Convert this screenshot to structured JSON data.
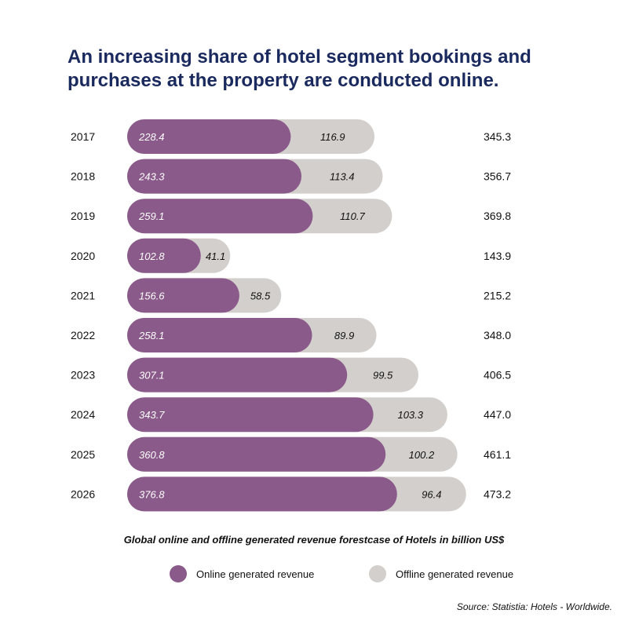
{
  "chart_data": {
    "type": "bar",
    "orientation": "horizontal",
    "stacked": true,
    "title": "An increasing share of hotel segment bookings and purchases at the property are conducted online.",
    "caption": "Global online and offline generated revenue forestcase of Hotels in billion US$",
    "source": "Source: Statistia: Hotels - Worldwide.",
    "categories": [
      "2017",
      "2018",
      "2019",
      "2020",
      "2021",
      "2022",
      "2023",
      "2024",
      "2025",
      "2026"
    ],
    "series": [
      {
        "name": "Online generated revenue",
        "color": "#8a5a8a",
        "values": [
          "228.4",
          "243.3",
          "259.1",
          "102.8",
          "156.6",
          "258.1",
          "307.1",
          "343.7",
          "360.8",
          "376.8"
        ]
      },
      {
        "name": "Offline generated revenue",
        "color": "#d3cfcc",
        "values": [
          "116.9",
          "113.4",
          "110.7",
          "41.1",
          "58.5",
          "89.9",
          "99.5",
          "103.3",
          "100.2",
          "96.4"
        ]
      }
    ],
    "totals": [
      "345.3",
      "356.7",
      "369.8",
      "143.9",
      "215.2",
      "348.0",
      "406.5",
      "447.0",
      "461.1",
      "473.2"
    ],
    "legend_position": "bottom",
    "grid": false
  }
}
